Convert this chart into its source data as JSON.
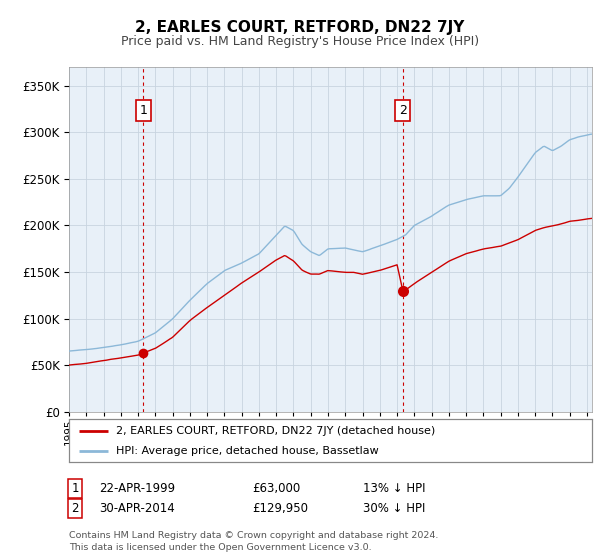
{
  "title": "2, EARLES COURT, RETFORD, DN22 7JY",
  "subtitle": "Price paid vs. HM Land Registry's House Price Index (HPI)",
  "legend_line1": "2, EARLES COURT, RETFORD, DN22 7JY (detached house)",
  "legend_line2": "HPI: Average price, detached house, Bassetlaw",
  "footnote1": "Contains HM Land Registry data © Crown copyright and database right 2024.",
  "footnote2": "This data is licensed under the Open Government Licence v3.0.",
  "sale1_date": "22-APR-1999",
  "sale1_price": 63000,
  "sale1_price_str": "£63,000",
  "sale1_label": "13% ↓ HPI",
  "sale1_year": 1999.31,
  "sale2_date": "30-APR-2014",
  "sale2_price": 129950,
  "sale2_price_str": "£129,950",
  "sale2_label": "30% ↓ HPI",
  "sale2_year": 2014.33,
  "hpi_color": "#8cb8d8",
  "price_color": "#cc0000",
  "bg_fill": "#e8f0f8",
  "grid_color": "#c8d4e0",
  "vline_color": "#cc0000",
  "marker_color": "#cc0000",
  "ylim": [
    0,
    370000
  ],
  "xlim_start": 1995.0,
  "xlim_end": 2025.3,
  "hpi_waypoints_years": [
    1995.0,
    1996.0,
    1997.0,
    1998.0,
    1999.0,
    2000.0,
    2001.0,
    2002.0,
    2003.0,
    2004.0,
    2005.0,
    2006.0,
    2007.0,
    2007.5,
    2008.0,
    2008.5,
    2009.0,
    2009.5,
    2010.0,
    2011.0,
    2012.0,
    2013.0,
    2014.0,
    2014.5,
    2015.0,
    2016.0,
    2017.0,
    2018.0,
    2019.0,
    2020.0,
    2020.5,
    2021.0,
    2021.5,
    2022.0,
    2022.5,
    2023.0,
    2023.5,
    2024.0,
    2024.5,
    2025.25
  ],
  "hpi_waypoints_vals": [
    65000,
    66500,
    69000,
    72000,
    76000,
    85000,
    100000,
    120000,
    138000,
    152000,
    160000,
    170000,
    190000,
    200000,
    195000,
    180000,
    172000,
    168000,
    175000,
    176000,
    172000,
    178000,
    185000,
    190000,
    200000,
    210000,
    222000,
    228000,
    232000,
    232000,
    240000,
    252000,
    265000,
    278000,
    285000,
    280000,
    285000,
    292000,
    295000,
    298000
  ],
  "price_waypoints_years": [
    1995.0,
    1996.0,
    1997.0,
    1998.0,
    1999.0,
    1999.31,
    2000.0,
    2001.0,
    2002.0,
    2003.0,
    2004.0,
    2005.0,
    2006.0,
    2007.0,
    2007.5,
    2008.0,
    2008.5,
    2009.0,
    2009.5,
    2010.0,
    2011.0,
    2011.5,
    2012.0,
    2012.5,
    2013.0,
    2013.5,
    2014.0,
    2014.33,
    2014.5,
    2015.0,
    2016.0,
    2017.0,
    2018.0,
    2019.0,
    2020.0,
    2021.0,
    2022.0,
    2022.5,
    2023.0,
    2023.5,
    2024.0,
    2024.5,
    2025.25
  ],
  "price_waypoints_vals": [
    50000,
    52000,
    55000,
    58000,
    61000,
    63000,
    68000,
    80000,
    98000,
    112000,
    125000,
    138000,
    150000,
    163000,
    168000,
    162000,
    152000,
    148000,
    148000,
    152000,
    150000,
    150000,
    148000,
    150000,
    152000,
    155000,
    158000,
    129950,
    131000,
    138000,
    150000,
    162000,
    170000,
    175000,
    178000,
    185000,
    195000,
    198000,
    200000,
    202000,
    205000,
    206000,
    208000
  ]
}
